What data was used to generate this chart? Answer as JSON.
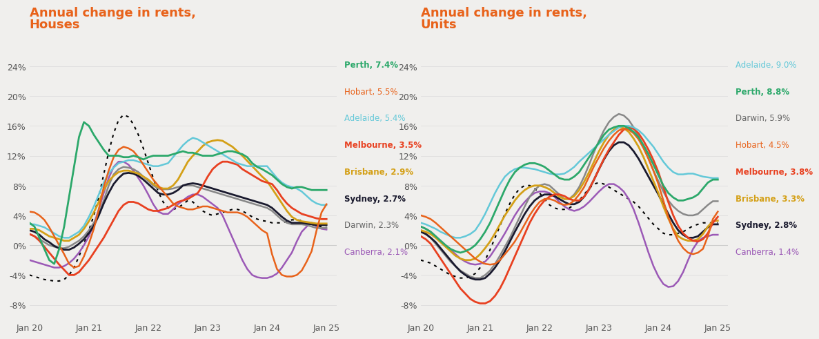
{
  "title_houses": "Annual change in rents,\nHouses",
  "title_units": "Annual change in rents,\nUnits",
  "title_color": "#E8621A",
  "background_color": "#F0EFED",
  "x_labels": [
    "Jan 20",
    "Jan 21",
    "Jan 22",
    "Jan 23",
    "Jan 24",
    "Jan 25"
  ],
  "ylim": [
    -0.1,
    0.28
  ],
  "yticks": [
    -0.08,
    -0.04,
    0.0,
    0.04,
    0.08,
    0.12,
    0.16,
    0.2,
    0.24
  ],
  "houses": {
    "Perth": [
      0.03,
      0.025,
      0.01,
      -0.005,
      -0.02,
      -0.025,
      -0.005,
      0.025,
      0.065,
      0.105,
      0.145,
      0.165,
      0.16,
      0.148,
      0.138,
      0.128,
      0.12,
      0.12,
      0.12,
      0.118,
      0.118,
      0.12,
      0.118,
      0.115,
      0.118,
      0.12,
      0.12,
      0.12,
      0.12,
      0.122,
      0.124,
      0.126,
      0.124,
      0.124,
      0.122,
      0.12,
      0.12,
      0.12,
      0.122,
      0.124,
      0.126,
      0.126,
      0.124,
      0.122,
      0.118,
      0.11,
      0.105,
      0.102,
      0.098,
      0.094,
      0.088,
      0.082,
      0.078,
      0.076,
      0.078,
      0.078,
      0.076,
      0.074,
      0.074,
      0.074,
      0.074
    ],
    "Hobart": [
      0.045,
      0.044,
      0.04,
      0.034,
      0.024,
      0.012,
      0.0,
      -0.012,
      -0.025,
      -0.03,
      -0.028,
      -0.015,
      0.002,
      0.022,
      0.048,
      0.078,
      0.1,
      0.118,
      0.128,
      0.132,
      0.13,
      0.126,
      0.118,
      0.108,
      0.098,
      0.088,
      0.08,
      0.072,
      0.064,
      0.056,
      0.052,
      0.05,
      0.048,
      0.048,
      0.05,
      0.052,
      0.052,
      0.05,
      0.048,
      0.046,
      0.044,
      0.044,
      0.044,
      0.042,
      0.038,
      0.032,
      0.026,
      0.02,
      0.016,
      -0.012,
      -0.032,
      -0.04,
      -0.042,
      -0.042,
      -0.04,
      -0.034,
      -0.022,
      -0.008,
      0.02,
      0.044,
      0.055
    ],
    "Adelaide": [
      0.028,
      0.028,
      0.026,
      0.024,
      0.02,
      0.016,
      0.012,
      0.01,
      0.01,
      0.014,
      0.018,
      0.026,
      0.038,
      0.052,
      0.068,
      0.084,
      0.096,
      0.104,
      0.11,
      0.112,
      0.114,
      0.114,
      0.112,
      0.11,
      0.108,
      0.106,
      0.106,
      0.108,
      0.11,
      0.118,
      0.126,
      0.134,
      0.14,
      0.144,
      0.142,
      0.138,
      0.134,
      0.13,
      0.126,
      0.122,
      0.118,
      0.114,
      0.11,
      0.108,
      0.106,
      0.106,
      0.106,
      0.106,
      0.106,
      0.098,
      0.09,
      0.084,
      0.08,
      0.078,
      0.076,
      0.072,
      0.066,
      0.06,
      0.056,
      0.054,
      0.054
    ],
    "Melbourne": [
      0.015,
      0.012,
      0.006,
      -0.002,
      -0.01,
      -0.018,
      -0.026,
      -0.033,
      -0.04,
      -0.04,
      -0.036,
      -0.028,
      -0.02,
      -0.01,
      0.0,
      0.01,
      0.022,
      0.034,
      0.046,
      0.054,
      0.058,
      0.058,
      0.056,
      0.052,
      0.048,
      0.046,
      0.046,
      0.048,
      0.05,
      0.054,
      0.058,
      0.06,
      0.062,
      0.066,
      0.07,
      0.08,
      0.092,
      0.102,
      0.108,
      0.112,
      0.112,
      0.11,
      0.108,
      0.102,
      0.098,
      0.094,
      0.09,
      0.086,
      0.084,
      0.082,
      0.074,
      0.064,
      0.056,
      0.05,
      0.046,
      0.042,
      0.04,
      0.038,
      0.036,
      0.035,
      0.035
    ],
    "Brisbane": [
      0.022,
      0.022,
      0.02,
      0.016,
      0.012,
      0.01,
      0.008,
      0.006,
      0.006,
      0.01,
      0.014,
      0.022,
      0.032,
      0.044,
      0.058,
      0.074,
      0.086,
      0.093,
      0.098,
      0.1,
      0.1,
      0.098,
      0.096,
      0.092,
      0.088,
      0.082,
      0.078,
      0.076,
      0.076,
      0.08,
      0.088,
      0.1,
      0.112,
      0.12,
      0.126,
      0.133,
      0.138,
      0.14,
      0.141,
      0.14,
      0.136,
      0.132,
      0.126,
      0.12,
      0.113,
      0.106,
      0.099,
      0.092,
      0.086,
      0.076,
      0.066,
      0.056,
      0.046,
      0.038,
      0.034,
      0.032,
      0.031,
      0.03,
      0.029,
      0.029,
      0.029
    ],
    "Sydney": [
      0.02,
      0.018,
      0.014,
      0.008,
      0.004,
      -0.001,
      -0.004,
      -0.006,
      -0.006,
      -0.003,
      0.002,
      0.008,
      0.016,
      0.026,
      0.04,
      0.056,
      0.07,
      0.082,
      0.09,
      0.096,
      0.097,
      0.096,
      0.093,
      0.088,
      0.082,
      0.076,
      0.07,
      0.068,
      0.068,
      0.07,
      0.074,
      0.08,
      0.082,
      0.083,
      0.082,
      0.08,
      0.078,
      0.076,
      0.074,
      0.072,
      0.07,
      0.068,
      0.066,
      0.064,
      0.062,
      0.06,
      0.058,
      0.056,
      0.054,
      0.05,
      0.044,
      0.038,
      0.033,
      0.03,
      0.03,
      0.03,
      0.029,
      0.028,
      0.027,
      0.027,
      0.027
    ],
    "Darwin": [
      0.015,
      0.012,
      0.008,
      0.004,
      0.0,
      -0.002,
      -0.004,
      -0.004,
      -0.002,
      0.002,
      0.006,
      0.012,
      0.02,
      0.03,
      0.042,
      0.06,
      0.08,
      0.095,
      0.102,
      0.105,
      0.104,
      0.102,
      0.098,
      0.092,
      0.086,
      0.08,
      0.076,
      0.075,
      0.075,
      0.076,
      0.078,
      0.08,
      0.08,
      0.08,
      0.078,
      0.076,
      0.074,
      0.072,
      0.07,
      0.068,
      0.066,
      0.064,
      0.062,
      0.06,
      0.058,
      0.056,
      0.054,
      0.052,
      0.05,
      0.046,
      0.04,
      0.034,
      0.03,
      0.028,
      0.028,
      0.028,
      0.027,
      0.025,
      0.023,
      0.023,
      0.023
    ],
    "Canberra": [
      -0.02,
      -0.022,
      -0.024,
      -0.026,
      -0.028,
      -0.03,
      -0.03,
      -0.028,
      -0.024,
      -0.018,
      -0.01,
      0.0,
      0.012,
      0.028,
      0.048,
      0.07,
      0.09,
      0.105,
      0.112,
      0.112,
      0.108,
      0.1,
      0.09,
      0.08,
      0.068,
      0.055,
      0.045,
      0.042,
      0.042,
      0.048,
      0.055,
      0.06,
      0.065,
      0.068,
      0.068,
      0.065,
      0.06,
      0.055,
      0.05,
      0.04,
      0.025,
      0.01,
      -0.005,
      -0.02,
      -0.032,
      -0.04,
      -0.043,
      -0.044,
      -0.044,
      -0.042,
      -0.038,
      -0.03,
      -0.02,
      -0.01,
      0.005,
      0.018,
      0.025,
      0.03,
      0.025,
      0.022,
      0.021
    ],
    "National": [
      -0.04,
      -0.042,
      -0.044,
      -0.046,
      -0.047,
      -0.048,
      -0.048,
      -0.046,
      -0.04,
      -0.03,
      -0.015,
      0.002,
      0.02,
      0.04,
      0.065,
      0.095,
      0.125,
      0.15,
      0.168,
      0.175,
      0.172,
      0.162,
      0.148,
      0.13,
      0.11,
      0.09,
      0.072,
      0.058,
      0.05,
      0.048,
      0.05,
      0.055,
      0.06,
      0.058,
      0.052,
      0.046,
      0.042,
      0.04,
      0.042,
      0.044,
      0.046,
      0.048,
      0.048,
      0.046,
      0.042,
      0.038,
      0.035,
      0.033,
      0.032,
      0.03,
      0.03,
      0.03,
      0.032,
      0.034,
      0.034,
      0.033,
      0.03,
      0.028,
      0.026,
      0.025,
      0.024
    ]
  },
  "units": {
    "Adelaide": [
      0.03,
      0.028,
      0.025,
      0.022,
      0.018,
      0.015,
      0.012,
      0.01,
      0.01,
      0.012,
      0.015,
      0.02,
      0.03,
      0.042,
      0.056,
      0.07,
      0.082,
      0.092,
      0.098,
      0.102,
      0.104,
      0.104,
      0.103,
      0.102,
      0.1,
      0.098,
      0.096,
      0.095,
      0.095,
      0.096,
      0.1,
      0.105,
      0.112,
      0.118,
      0.124,
      0.13,
      0.136,
      0.142,
      0.148,
      0.153,
      0.158,
      0.16,
      0.16,
      0.158,
      0.154,
      0.148,
      0.14,
      0.132,
      0.122,
      0.112,
      0.104,
      0.098,
      0.095,
      0.095,
      0.096,
      0.096,
      0.094,
      0.092,
      0.091,
      0.09,
      0.09
    ],
    "Perth": [
      0.025,
      0.022,
      0.018,
      0.012,
      0.006,
      0.0,
      -0.005,
      -0.008,
      -0.01,
      -0.008,
      -0.005,
      0.0,
      0.008,
      0.018,
      0.03,
      0.045,
      0.06,
      0.075,
      0.088,
      0.098,
      0.104,
      0.108,
      0.11,
      0.11,
      0.108,
      0.105,
      0.1,
      0.095,
      0.09,
      0.088,
      0.088,
      0.092,
      0.098,
      0.108,
      0.118,
      0.128,
      0.138,
      0.148,
      0.155,
      0.158,
      0.16,
      0.16,
      0.157,
      0.152,
      0.145,
      0.134,
      0.122,
      0.108,
      0.094,
      0.08,
      0.07,
      0.064,
      0.06,
      0.06,
      0.062,
      0.064,
      0.068,
      0.076,
      0.084,
      0.088,
      0.088
    ],
    "Darwin": [
      0.02,
      0.016,
      0.01,
      0.002,
      -0.006,
      -0.014,
      -0.022,
      -0.028,
      -0.034,
      -0.038,
      -0.042,
      -0.044,
      -0.044,
      -0.04,
      -0.034,
      -0.025,
      -0.014,
      -0.002,
      0.01,
      0.024,
      0.038,
      0.052,
      0.065,
      0.074,
      0.08,
      0.082,
      0.08,
      0.074,
      0.068,
      0.062,
      0.062,
      0.068,
      0.078,
      0.092,
      0.108,
      0.125,
      0.14,
      0.154,
      0.165,
      0.172,
      0.176,
      0.174,
      0.168,
      0.158,
      0.146,
      0.132,
      0.116,
      0.1,
      0.086,
      0.072,
      0.06,
      0.052,
      0.046,
      0.042,
      0.04,
      0.04,
      0.042,
      0.048,
      0.054,
      0.059,
      0.059
    ],
    "Hobart": [
      0.04,
      0.038,
      0.035,
      0.03,
      0.024,
      0.018,
      0.012,
      0.006,
      0.0,
      -0.006,
      -0.012,
      -0.018,
      -0.022,
      -0.025,
      -0.026,
      -0.025,
      -0.02,
      -0.012,
      -0.004,
      0.005,
      0.016,
      0.028,
      0.04,
      0.05,
      0.058,
      0.062,
      0.062,
      0.06,
      0.056,
      0.054,
      0.055,
      0.06,
      0.068,
      0.078,
      0.092,
      0.106,
      0.118,
      0.13,
      0.14,
      0.148,
      0.154,
      0.156,
      0.155,
      0.15,
      0.142,
      0.13,
      0.116,
      0.1,
      0.082,
      0.06,
      0.038,
      0.02,
      0.006,
      -0.004,
      -0.01,
      -0.012,
      -0.01,
      -0.005,
      0.012,
      0.035,
      0.045
    ],
    "Melbourne": [
      0.012,
      0.008,
      0.002,
      -0.008,
      -0.018,
      -0.028,
      -0.038,
      -0.048,
      -0.058,
      -0.065,
      -0.072,
      -0.076,
      -0.078,
      -0.078,
      -0.075,
      -0.068,
      -0.058,
      -0.045,
      -0.03,
      -0.015,
      0.0,
      0.015,
      0.03,
      0.042,
      0.052,
      0.06,
      0.065,
      0.068,
      0.068,
      0.066,
      0.062,
      0.06,
      0.06,
      0.065,
      0.075,
      0.088,
      0.102,
      0.116,
      0.128,
      0.138,
      0.148,
      0.155,
      0.158,
      0.156,
      0.15,
      0.14,
      0.128,
      0.114,
      0.098,
      0.078,
      0.058,
      0.04,
      0.026,
      0.016,
      0.01,
      0.006,
      0.005,
      0.008,
      0.016,
      0.03,
      0.038
    ],
    "Brisbane": [
      0.02,
      0.018,
      0.015,
      0.01,
      0.004,
      -0.002,
      -0.008,
      -0.014,
      -0.018,
      -0.02,
      -0.02,
      -0.018,
      -0.012,
      -0.004,
      0.005,
      0.016,
      0.028,
      0.04,
      0.05,
      0.06,
      0.068,
      0.074,
      0.078,
      0.08,
      0.08,
      0.078,
      0.075,
      0.07,
      0.065,
      0.062,
      0.062,
      0.066,
      0.074,
      0.085,
      0.098,
      0.112,
      0.126,
      0.138,
      0.148,
      0.155,
      0.158,
      0.157,
      0.152,
      0.143,
      0.132,
      0.118,
      0.102,
      0.086,
      0.07,
      0.052,
      0.036,
      0.022,
      0.012,
      0.008,
      0.006,
      0.006,
      0.008,
      0.015,
      0.025,
      0.032,
      0.033
    ],
    "Sydney": [
      0.018,
      0.015,
      0.01,
      0.004,
      -0.004,
      -0.012,
      -0.02,
      -0.028,
      -0.035,
      -0.04,
      -0.044,
      -0.046,
      -0.046,
      -0.044,
      -0.038,
      -0.03,
      -0.02,
      -0.008,
      0.005,
      0.018,
      0.03,
      0.042,
      0.052,
      0.06,
      0.065,
      0.068,
      0.068,
      0.066,
      0.062,
      0.058,
      0.055,
      0.055,
      0.058,
      0.065,
      0.075,
      0.088,
      0.102,
      0.115,
      0.126,
      0.134,
      0.138,
      0.138,
      0.134,
      0.126,
      0.116,
      0.104,
      0.092,
      0.08,
      0.068,
      0.055,
      0.042,
      0.03,
      0.02,
      0.014,
      0.01,
      0.01,
      0.012,
      0.018,
      0.024,
      0.028,
      0.028
    ],
    "Canberra": [
      0.025,
      0.022,
      0.018,
      0.012,
      0.006,
      0.0,
      -0.006,
      -0.012,
      -0.018,
      -0.022,
      -0.025,
      -0.026,
      -0.025,
      -0.022,
      -0.015,
      -0.005,
      0.005,
      0.016,
      0.028,
      0.04,
      0.05,
      0.058,
      0.065,
      0.07,
      0.072,
      0.072,
      0.07,
      0.065,
      0.058,
      0.052,
      0.048,
      0.046,
      0.048,
      0.052,
      0.058,
      0.065,
      0.072,
      0.078,
      0.082,
      0.082,
      0.078,
      0.072,
      0.062,
      0.048,
      0.03,
      0.01,
      -0.01,
      -0.028,
      -0.042,
      -0.052,
      -0.056,
      -0.055,
      -0.048,
      -0.036,
      -0.02,
      -0.005,
      0.005,
      0.01,
      0.012,
      0.014,
      0.014
    ],
    "National": [
      -0.02,
      -0.022,
      -0.024,
      -0.028,
      -0.032,
      -0.036,
      -0.04,
      -0.042,
      -0.044,
      -0.044,
      -0.042,
      -0.038,
      -0.03,
      -0.02,
      -0.006,
      0.01,
      0.026,
      0.042,
      0.056,
      0.068,
      0.076,
      0.08,
      0.08,
      0.076,
      0.07,
      0.062,
      0.054,
      0.05,
      0.048,
      0.048,
      0.05,
      0.054,
      0.06,
      0.068,
      0.076,
      0.082,
      0.084,
      0.082,
      0.078,
      0.074,
      0.07,
      0.066,
      0.062,
      0.058,
      0.052,
      0.044,
      0.036,
      0.028,
      0.022,
      0.016,
      0.014,
      0.014,
      0.016,
      0.018,
      0.022,
      0.026,
      0.028,
      0.03,
      0.03,
      0.03,
      0.03
    ]
  },
  "houses_legend": [
    {
      "label": "Perth, 7.4%",
      "color": "#2CA86A",
      "bold": true
    },
    {
      "label": "Hobart, 5.5%",
      "color": "#E8621A",
      "bold": false
    },
    {
      "label": "Adelaide, 5.4%",
      "color": "#63C8D8",
      "bold": false
    },
    {
      "label": "Melbourne, 3.5%",
      "color": "#E84020",
      "bold": true
    },
    {
      "label": "Brisbane, 2.9%",
      "color": "#D4A017",
      "bold": true
    },
    {
      "label": "Sydney, 2.7%",
      "color": "#1A1A2E",
      "bold": true
    },
    {
      "label": "Darwin, 2.3%",
      "color": "#666666",
      "bold": false
    },
    {
      "label": "Canberra, 2.1%",
      "color": "#9B59B6",
      "bold": false
    }
  ],
  "units_legend": [
    {
      "label": "Adelaide, 9.0%",
      "color": "#63C8D8",
      "bold": false
    },
    {
      "label": "Perth, 8.8%",
      "color": "#2CA86A",
      "bold": true
    },
    {
      "label": "Darwin, 5.9%",
      "color": "#666666",
      "bold": false
    },
    {
      "label": "Hobart, 4.5%",
      "color": "#E8621A",
      "bold": false
    },
    {
      "label": "Melbourne, 3.8%",
      "color": "#E84020",
      "bold": true
    },
    {
      "label": "Brisbane, 3.3%",
      "color": "#D4A017",
      "bold": true
    },
    {
      "label": "Sydney, 2.8%",
      "color": "#1A1A2E",
      "bold": true
    },
    {
      "label": "Canberra, 1.4%",
      "color": "#9B59B6",
      "bold": false
    }
  ],
  "line_colors": {
    "Perth": "#2CA86A",
    "Hobart": "#E8621A",
    "Adelaide": "#63C8D8",
    "Melbourne": "#E84020",
    "Brisbane": "#D4A017",
    "Sydney": "#1A1A2E",
    "Darwin": "#888888",
    "Canberra": "#9B59B6"
  }
}
